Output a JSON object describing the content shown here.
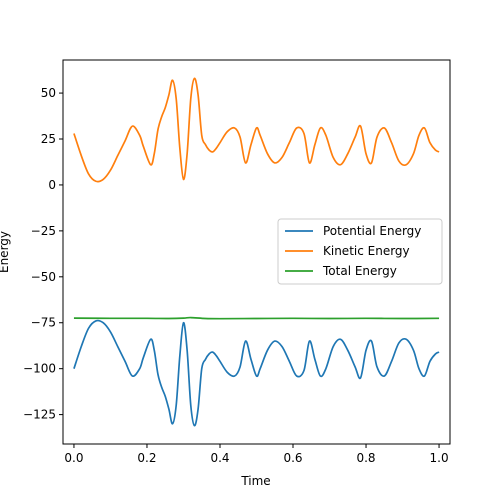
{
  "chart_data": {
    "type": "line",
    "title": "",
    "xlabel": "Time",
    "ylabel": "Energy",
    "xlim": [
      -0.03,
      1.03
    ],
    "ylim": [
      -141,
      68
    ],
    "xticks": [
      0.0,
      0.2,
      0.4,
      0.6,
      0.8,
      1.0
    ],
    "xtick_labels": [
      "0.0",
      "0.2",
      "0.4",
      "0.6",
      "0.8",
      "1.0"
    ],
    "yticks": [
      50,
      25,
      0,
      -25,
      -50,
      -75,
      -100,
      -125
    ],
    "ytick_labels": [
      "50",
      "25",
      "0",
      "−25",
      "−50",
      "−75",
      "−100",
      "−125"
    ],
    "grid": false,
    "legend_position": "center-right",
    "series": [
      {
        "name": "Potential Energy",
        "color": "#1f77b4",
        "x": [
          0.0,
          0.02,
          0.04,
          0.06,
          0.08,
          0.1,
          0.12,
          0.14,
          0.16,
          0.18,
          0.19,
          0.21,
          0.22,
          0.23,
          0.24,
          0.25,
          0.26,
          0.27,
          0.28,
          0.29,
          0.3,
          0.31,
          0.32,
          0.33,
          0.34,
          0.35,
          0.36,
          0.37,
          0.38,
          0.39,
          0.4,
          0.42,
          0.44,
          0.455,
          0.47,
          0.485,
          0.5,
          0.51,
          0.53,
          0.55,
          0.57,
          0.59,
          0.61,
          0.63,
          0.645,
          0.66,
          0.675,
          0.69,
          0.71,
          0.73,
          0.75,
          0.77,
          0.785,
          0.8,
          0.815,
          0.83,
          0.85,
          0.87,
          0.89,
          0.91,
          0.93,
          0.945,
          0.96,
          0.975,
          0.99,
          1.0
        ],
        "y": [
          -100,
          -88,
          -78,
          -74,
          -75,
          -80,
          -88,
          -96,
          -104,
          -100,
          -94,
          -84,
          -90,
          -103,
          -110,
          -115,
          -122,
          -130,
          -120,
          -93,
          -75,
          -90,
          -120,
          -131,
          -122,
          -100,
          -95,
          -92,
          -91,
          -93,
          -96,
          -102,
          -104,
          -99,
          -85,
          -95,
          -104,
          -100,
          -90,
          -85,
          -88,
          -96,
          -104,
          -101,
          -85,
          -95,
          -104,
          -100,
          -88,
          -84,
          -90,
          -99,
          -105,
          -90,
          -85,
          -99,
          -104,
          -96,
          -86,
          -84,
          -90,
          -100,
          -104,
          -96,
          -92,
          -91
        ]
      },
      {
        "name": "Kinetic Energy",
        "color": "#ff7f0e",
        "x": [
          0.0,
          0.02,
          0.04,
          0.06,
          0.08,
          0.1,
          0.12,
          0.14,
          0.16,
          0.18,
          0.19,
          0.21,
          0.22,
          0.23,
          0.24,
          0.25,
          0.26,
          0.27,
          0.28,
          0.29,
          0.3,
          0.31,
          0.32,
          0.33,
          0.34,
          0.35,
          0.36,
          0.37,
          0.38,
          0.39,
          0.4,
          0.42,
          0.44,
          0.455,
          0.47,
          0.485,
          0.5,
          0.51,
          0.53,
          0.55,
          0.57,
          0.59,
          0.61,
          0.63,
          0.645,
          0.66,
          0.675,
          0.69,
          0.71,
          0.73,
          0.75,
          0.77,
          0.785,
          0.8,
          0.815,
          0.83,
          0.85,
          0.87,
          0.89,
          0.91,
          0.93,
          0.945,
          0.96,
          0.975,
          0.99,
          1.0
        ],
        "y": [
          28,
          16,
          6,
          2,
          3,
          8,
          16,
          24,
          32,
          27,
          21,
          11,
          17,
          30,
          37,
          42,
          49,
          57,
          47,
          20,
          3,
          17,
          47,
          58,
          49,
          27,
          22,
          19,
          18,
          20,
          23,
          29,
          31,
          26,
          12,
          22,
          31,
          27,
          17,
          12,
          15,
          23,
          31,
          28,
          12,
          22,
          31,
          27,
          15,
          11,
          17,
          26,
          32,
          17,
          12,
          26,
          31,
          23,
          13,
          11,
          17,
          27,
          31,
          23,
          19,
          18
        ]
      },
      {
        "name": "Total Energy",
        "color": "#2ca02c",
        "x": [
          0.0,
          0.1,
          0.2,
          0.26,
          0.3,
          0.32,
          0.36,
          0.4,
          0.5,
          0.6,
          0.7,
          0.8,
          0.9,
          1.0
        ],
        "y": [
          -72.5,
          -72.6,
          -72.6,
          -72.7,
          -72.5,
          -72.2,
          -72.7,
          -72.8,
          -72.7,
          -72.6,
          -72.7,
          -72.6,
          -72.7,
          -72.6
        ]
      }
    ]
  }
}
